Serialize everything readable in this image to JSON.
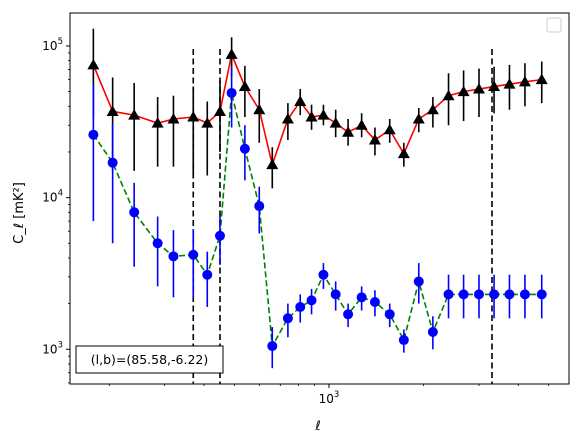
{
  "chart_data": {
    "type": "line",
    "xlabel": "ℓ",
    "ylabel": "C_ℓ [mK²]",
    "xscale": "log",
    "yscale": "log",
    "xlim": [
      150,
      5800
    ],
    "ylim": [
      590,
      165000
    ],
    "x_ticks": [
      {
        "value": 1000,
        "base": "10",
        "exp": "3"
      }
    ],
    "y_ticks": [
      {
        "value": 1000,
        "base": "10",
        "exp": "3"
      },
      {
        "value": 10000,
        "base": "10",
        "exp": "4"
      },
      {
        "value": 100000,
        "base": "10",
        "exp": "5"
      }
    ],
    "vlines": [
      370,
      450,
      3300
    ],
    "annotation": "(l,b)=(85.58,-6.22)",
    "legend_position": "upper right",
    "grid": false,
    "series": [
      {
        "line_color": "#ff0000",
        "marker_color": "#000000",
        "errbar_color": "#000000",
        "marker": "triangle",
        "linestyle": "solid",
        "x": [
          178,
          205,
          240,
          285,
          320,
          370,
          410,
          450,
          490,
          540,
          600,
          660,
          740,
          810,
          880,
          960,
          1050,
          1150,
          1270,
          1400,
          1560,
          1730,
          1930,
          2140,
          2400,
          2680,
          3000,
          3350,
          3750,
          4200,
          4750
        ],
        "y": [
          75000,
          37000,
          35000,
          31000,
          33000,
          34000,
          31000,
          37000,
          88000,
          54000,
          38000,
          16500,
          33000,
          43000,
          34000,
          35000,
          31000,
          27000,
          30000,
          24000,
          28000,
          19500,
          33000,
          38000,
          47000,
          50000,
          52000,
          54000,
          56000,
          58000,
          60000
        ],
        "err_low": [
          42000,
          22000,
          20000,
          15000,
          17000,
          20000,
          17000,
          17000,
          25000,
          20000,
          15000,
          5000,
          9000,
          8000,
          6000,
          5000,
          6000,
          5000,
          5000,
          5000,
          5000,
          3500,
          6000,
          9000,
          17000,
          18000,
          18000,
          18000,
          18000,
          18000,
          18000
        ],
        "err_high": [
          55000,
          25000,
          22000,
          15000,
          14000,
          20000,
          12000,
          22000,
          26000,
          20000,
          14000,
          5000,
          9000,
          9000,
          7000,
          6000,
          7000,
          6000,
          6000,
          5000,
          5000,
          3500,
          6000,
          8000,
          19000,
          19000,
          19000,
          19000,
          19000,
          19000,
          19000
        ]
      },
      {
        "line_color": "#008000",
        "marker_color": "#0000ff",
        "errbar_color": "#0000ff",
        "marker": "circle",
        "linestyle": "dashed",
        "x": [
          178,
          205,
          240,
          285,
          320,
          370,
          410,
          450,
          490,
          540,
          600,
          660,
          740,
          810,
          880,
          960,
          1050,
          1150,
          1270,
          1400,
          1560,
          1730,
          1930,
          2140,
          2400,
          2680,
          3000,
          3350,
          3750,
          4200,
          4750
        ],
        "y": [
          26000,
          17000,
          8000,
          5000,
          4100,
          4200,
          3100,
          5600,
          49000,
          21000,
          8800,
          1050,
          1600,
          1900,
          2100,
          3100,
          2300,
          1700,
          2200,
          2050,
          1700,
          1150,
          2800,
          1300,
          2300,
          2300,
          2300,
          2300,
          2300,
          2300,
          2300
        ],
        "err_low": [
          19000,
          12000,
          4500,
          2400,
          1900,
          2000,
          1200,
          2000,
          20000,
          8000,
          3000,
          300,
          400,
          400,
          400,
          600,
          500,
          300,
          400,
          400,
          300,
          200,
          800,
          300,
          700,
          700,
          700,
          700,
          700,
          700,
          700
        ],
        "err_high": [
          30000,
          14000,
          4500,
          2500,
          2000,
          2000,
          1300,
          2000,
          24000,
          9000,
          3000,
          350,
          400,
          400,
          400,
          600,
          500,
          300,
          400,
          400,
          300,
          200,
          900,
          350,
          800,
          800,
          800,
          800,
          800,
          800,
          800
        ]
      }
    ]
  }
}
